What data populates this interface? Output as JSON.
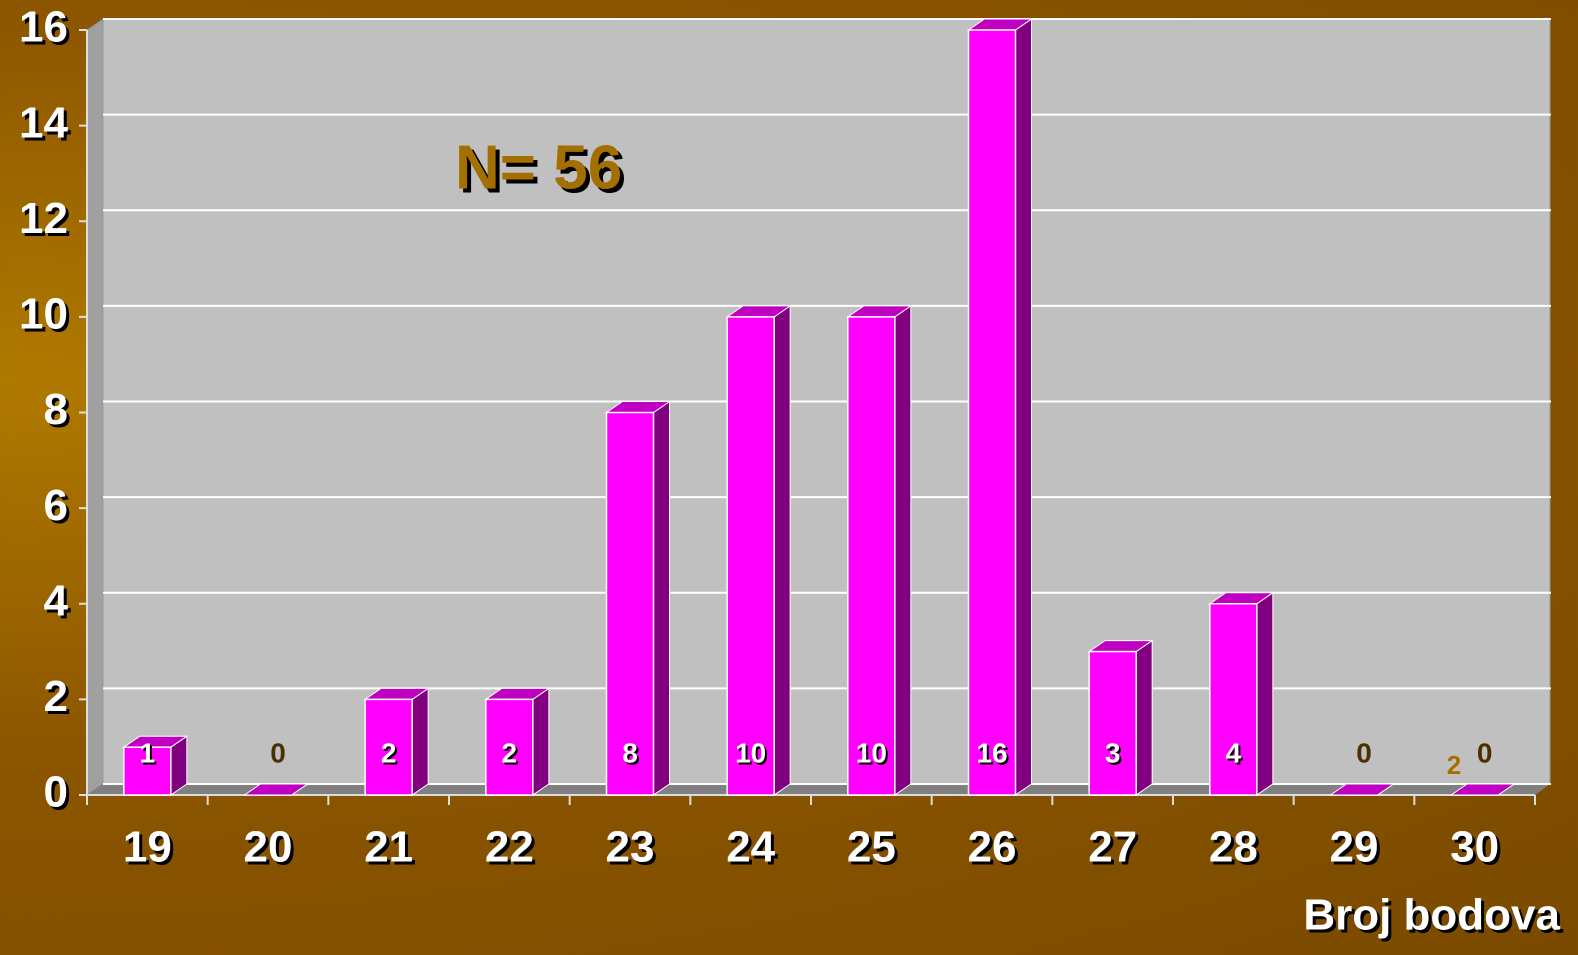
{
  "chart_data": {
    "type": "bar3d",
    "annotations": [
      "N= 56",
      "2"
    ],
    "x_label": "Broj bodova",
    "categories": [
      "19",
      "20",
      "21",
      "22",
      "23",
      "24",
      "25",
      "26",
      "27",
      "28",
      "29",
      "30"
    ],
    "values": [
      1,
      0,
      2,
      2,
      8,
      10,
      10,
      16,
      3,
      4,
      0,
      0
    ],
    "color": "#ff00ff",
    "ylim": [
      0,
      16
    ],
    "yticks": [
      0,
      2,
      4,
      6,
      8,
      10,
      12,
      14,
      16
    ],
    "grid": true
  }
}
